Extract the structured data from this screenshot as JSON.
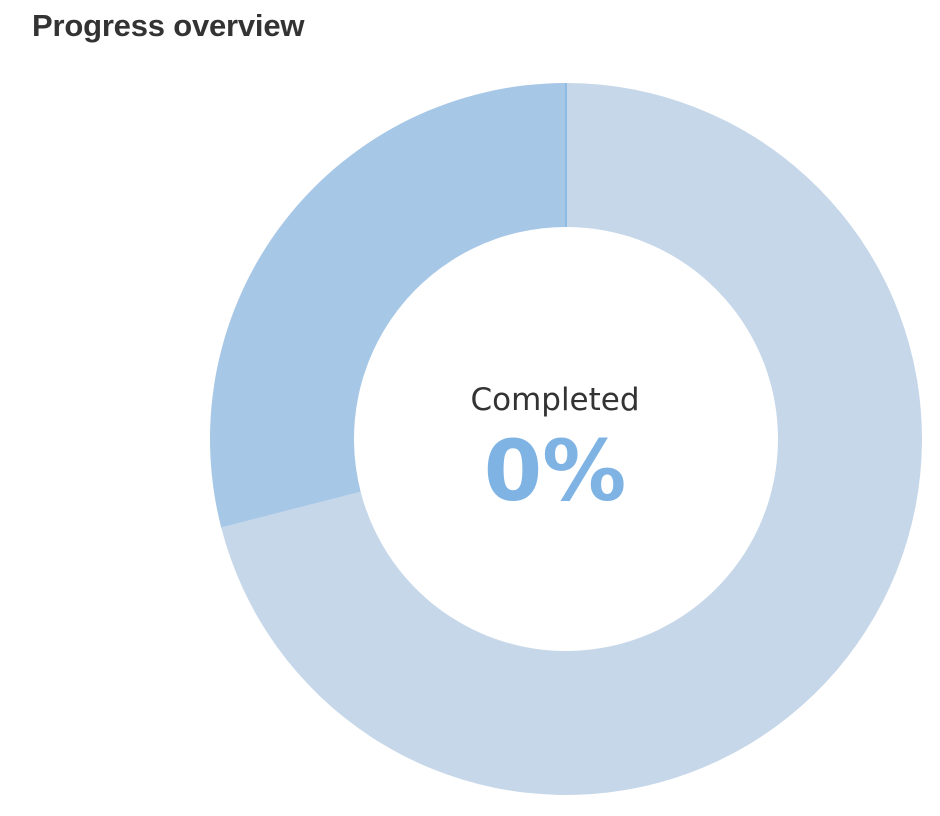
{
  "header": {
    "title": "Progress overview"
  },
  "chart_data": {
    "type": "pie",
    "variant": "donut",
    "categories": [
      "",
      ""
    ],
    "values": [
      71,
      29
    ],
    "colors": [
      "#c6d7e9",
      "#a7c7e7"
    ],
    "center": {
      "label": "Completed",
      "value": "0%",
      "value_color": "#7eb3e3"
    },
    "title": "",
    "legend": "none"
  }
}
